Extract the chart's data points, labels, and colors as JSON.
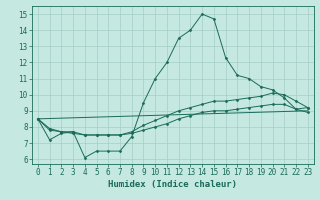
{
  "title": "",
  "xlabel": "Humidex (Indice chaleur)",
  "ylabel": "",
  "bg_color": "#c5e8e0",
  "grid_color": "#9dc8c0",
  "line_color": "#1a6b5a",
  "marker_color": "#1a6b5a",
  "xlim": [
    -0.5,
    23.5
  ],
  "ylim": [
    5.7,
    15.5
  ],
  "xticks": [
    0,
    1,
    2,
    3,
    4,
    5,
    6,
    7,
    8,
    9,
    10,
    11,
    12,
    13,
    14,
    15,
    16,
    17,
    18,
    19,
    20,
    21,
    22,
    23
  ],
  "yticks": [
    6,
    7,
    8,
    9,
    10,
    11,
    12,
    13,
    14,
    15
  ],
  "line1_x": [
    0,
    1,
    2,
    3,
    4,
    5,
    6,
    7,
    8,
    9,
    10,
    11,
    12,
    13,
    14,
    15,
    16,
    17,
    18,
    19,
    20,
    21,
    22,
    23
  ],
  "line1_y": [
    8.5,
    7.2,
    7.6,
    7.7,
    6.1,
    6.5,
    6.5,
    6.5,
    7.4,
    9.5,
    11.0,
    12.0,
    13.5,
    14.0,
    15.0,
    14.7,
    12.3,
    11.2,
    11.0,
    10.5,
    10.3,
    9.8,
    9.1,
    9.2
  ],
  "line2_x": [
    0,
    1,
    2,
    3,
    4,
    5,
    6,
    7,
    8,
    9,
    10,
    11,
    12,
    13,
    14,
    15,
    16,
    17,
    18,
    19,
    20,
    21,
    22,
    23
  ],
  "line2_y": [
    8.5,
    7.9,
    7.7,
    7.7,
    7.5,
    7.5,
    7.5,
    7.5,
    7.7,
    8.1,
    8.4,
    8.7,
    9.0,
    9.2,
    9.4,
    9.6,
    9.6,
    9.7,
    9.8,
    9.9,
    10.1,
    10.0,
    9.6,
    9.2
  ],
  "line3_x": [
    0,
    1,
    2,
    3,
    4,
    5,
    6,
    7,
    8,
    9,
    10,
    11,
    12,
    13,
    14,
    15,
    16,
    17,
    18,
    19,
    20,
    21,
    22,
    23
  ],
  "line3_y": [
    8.5,
    7.8,
    7.7,
    7.6,
    7.5,
    7.5,
    7.5,
    7.5,
    7.6,
    7.8,
    8.0,
    8.2,
    8.5,
    8.7,
    8.9,
    9.0,
    9.0,
    9.1,
    9.2,
    9.3,
    9.4,
    9.4,
    9.1,
    8.9
  ],
  "line4_x": [
    0,
    23
  ],
  "line4_y": [
    8.5,
    9.0
  ],
  "xlabel_fontsize": 6.5,
  "tick_fontsize": 5.5,
  "linewidth": 0.7,
  "markersize": 1.5
}
